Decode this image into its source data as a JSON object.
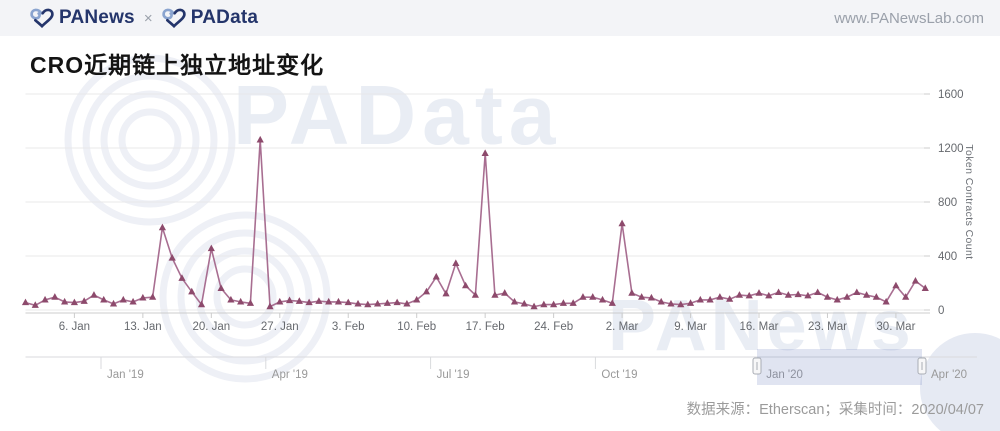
{
  "header": {
    "brand_primary": "PANews",
    "brand_separator": "×",
    "brand_secondary": "PAData",
    "website": "www.PANewsLab.com"
  },
  "title": "CRO近期链上独立地址变化",
  "footer": {
    "source_note": "数据来源：Etherscan；采集时间：2020/04/07"
  },
  "watermarks": {
    "top": "PAData",
    "bottom": "PANews"
  },
  "colors": {
    "line": "#a86e91",
    "marker": "#8d4a6c",
    "grid": "#e8e8ea",
    "axis": "#cccccc",
    "tick_label": "#66696e",
    "nav_label": "#999999",
    "nav_selection": "rgba(102,122,184,0.20)",
    "watermark": "#e9edf4",
    "brand_navy": "#24356b",
    "brand_lightblue": "#8aa4cf"
  },
  "chart_data": {
    "type": "line",
    "title": "CRO近期链上独立地址变化",
    "ylabel": "Token Contracts Count",
    "ylim": [
      0,
      1600
    ],
    "yticks": [
      0,
      400,
      800,
      1200,
      1600
    ],
    "grid": "horizontal",
    "marker": "triangle-up",
    "legend": "none",
    "start_date": "2020-01-01",
    "end_date": "2020-04-02",
    "xtick_labels": [
      "6. Jan",
      "13. Jan",
      "20. Jan",
      "27. Jan",
      "3. Feb",
      "10. Feb",
      "17. Feb",
      "24. Feb",
      "2. Mar",
      "9. Mar",
      "16. Mar",
      "23. Mar",
      "30. Mar"
    ],
    "values": [
      55,
      35,
      75,
      95,
      60,
      55,
      65,
      110,
      75,
      45,
      75,
      60,
      90,
      95,
      610,
      385,
      235,
      135,
      40,
      455,
      160,
      75,
      60,
      50,
      1260,
      25,
      60,
      70,
      65,
      55,
      65,
      60,
      60,
      55,
      45,
      40,
      45,
      50,
      55,
      45,
      75,
      135,
      245,
      120,
      345,
      180,
      110,
      1160,
      110,
      125,
      60,
      45,
      25,
      40,
      40,
      50,
      50,
      95,
      95,
      75,
      50,
      640,
      125,
      95,
      90,
      60,
      45,
      40,
      50,
      75,
      75,
      95,
      80,
      110,
      105,
      125,
      105,
      130,
      110,
      115,
      105,
      130,
      95,
      75,
      95,
      130,
      110,
      95,
      60,
      180,
      95,
      215,
      160
    ],
    "navigator": {
      "labels": [
        "Jan '19",
        "Apr '19",
        "Jul '19",
        "Oct '19",
        "Jan '20",
        "Apr '20"
      ],
      "selected_start": "Jan '20",
      "selected_end": "Apr '20"
    }
  }
}
